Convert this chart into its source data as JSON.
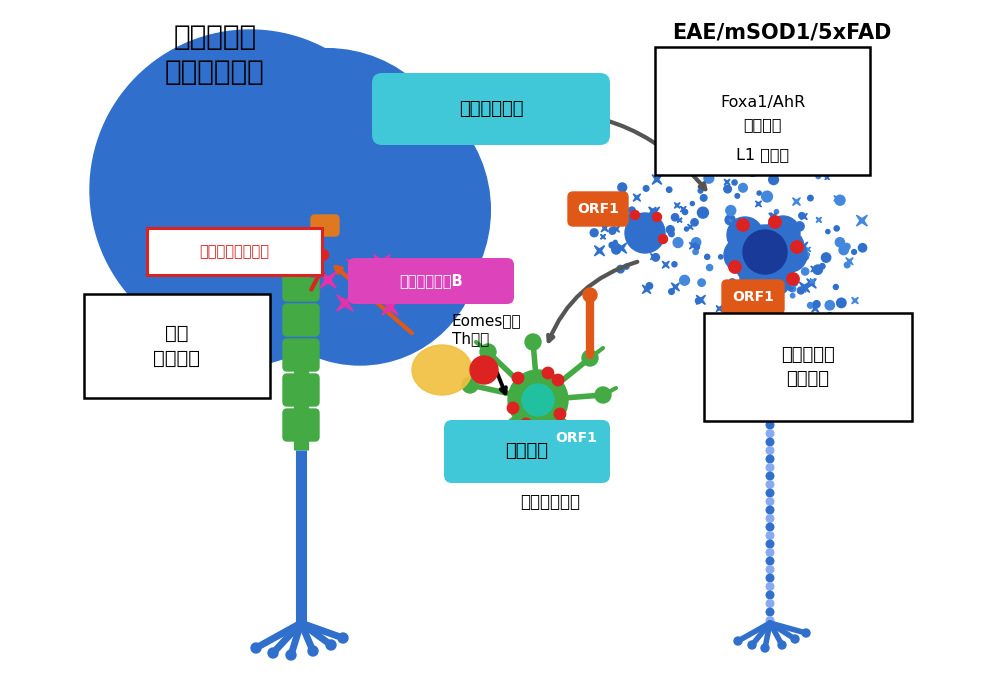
{
  "bg_color": "#ffffff",
  "title_left": "免疫依存性\n神経細胞障害",
  "title_right": "EAE/mSOD1/5xFAD",
  "box_foxa_line1": "Foxa1/AhR",
  "box_foxa_line2": "細胞周期",
  "box_foxa_line3": "↓",
  "box_foxa_line4": "L1 脱抑制",
  "label_shinkei": "神経細胞障害",
  "label_mitochondria": "ミトコンドリア？",
  "label_granzyme": "グランザイムB",
  "label_orf1": "ORF1",
  "label_eomes": "Eomes陽性\nTh細胞",
  "label_kenko": "健常\n神経細胞",
  "label_kogen": "抗原提示",
  "label_microglia": "ミクログリア",
  "label_shogai": "障害された\n神経細胞",
  "color_blue": "#3070cc",
  "color_blue_light": "#4488dd",
  "color_blue_dark": "#1a3a9a",
  "color_green": "#44aa44",
  "color_green_dark": "#338833",
  "color_cyan": "#40c8d8",
  "color_orange": "#e05818",
  "color_red": "#dd2222",
  "color_magenta": "#e830a8",
  "color_yellow": "#f0c040",
  "color_olive": "#88aa44",
  "color_teal": "#20c0a0"
}
